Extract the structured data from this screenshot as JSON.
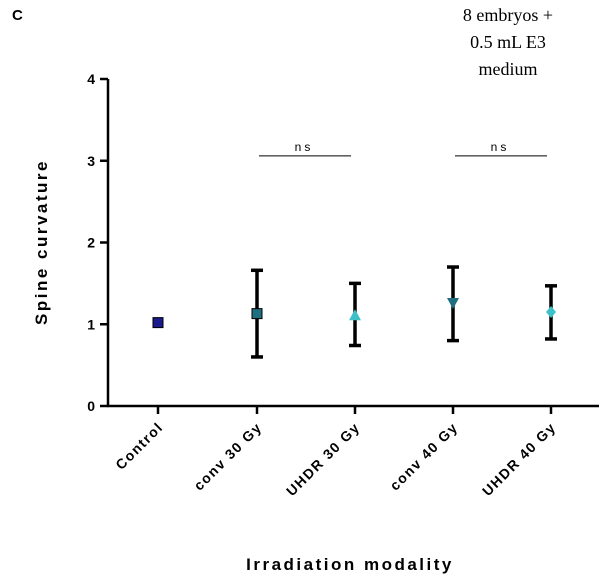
{
  "panel_label": "C",
  "annotation": [
    "8 embryos +",
    "0.5 mL E3",
    "medium"
  ],
  "chart_data": {
    "type": "scatter",
    "title": "",
    "xlabel": "Irradiation modality",
    "ylabel": "Spine curvature",
    "ylim": [
      0,
      4
    ],
    "yticks": [
      0,
      1,
      2,
      3,
      4
    ],
    "categories": [
      "Control",
      "conv 30 Gy",
      "UHDR 30 Gy",
      "conv 40 Gy",
      "UHDR 40 Gy"
    ],
    "series": [
      {
        "marker": "square",
        "color": "#1a1a8c",
        "mean": 1.02,
        "lower": 1.02,
        "upper": 1.02
      },
      {
        "marker": "square",
        "color": "#1f6f80",
        "mean": 1.13,
        "lower": 0.6,
        "upper": 1.66
      },
      {
        "marker": "triangle-up",
        "color": "#3ec0c8",
        "mean": 1.11,
        "lower": 0.74,
        "upper": 1.5
      },
      {
        "marker": "triangle-down",
        "color": "#1f6f80",
        "mean": 1.26,
        "lower": 0.8,
        "upper": 1.7
      },
      {
        "marker": "diamond",
        "color": "#3ec0c8",
        "mean": 1.15,
        "lower": 0.82,
        "upper": 1.47
      }
    ],
    "comparisons": [
      {
        "from": 1,
        "to": 2,
        "label": "ns",
        "y": 3.06
      },
      {
        "from": 3,
        "to": 4,
        "label": "ns",
        "y": 3.06
      }
    ],
    "grid": false
  }
}
